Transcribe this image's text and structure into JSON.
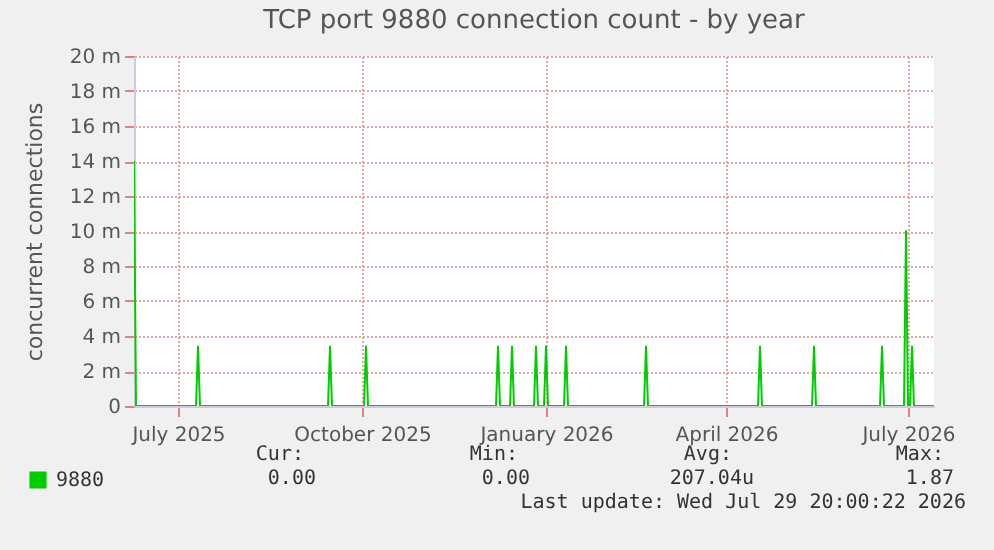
{
  "chart_data": {
    "type": "line",
    "title": "TCP port 9880 connection count - by year",
    "ylabel": "concurrent connections",
    "x": [
      "2025-06-24",
      "2025-06-25",
      "2025-07-25",
      "2025-07-26",
      "2025-07-27",
      "2025-09-29",
      "2025-09-30",
      "2025-10-01",
      "2025-10-17",
      "2025-10-18",
      "2025-10-19",
      "2025-12-22",
      "2025-12-23",
      "2025-12-24",
      "2025-12-29",
      "2025-12-30",
      "2025-12-31",
      "2026-01-10",
      "2026-01-11",
      "2026-01-12",
      "2026-01-15",
      "2026-01-16",
      "2026-01-17",
      "2026-01-25",
      "2026-01-26",
      "2026-01-27",
      "2026-03-06",
      "2026-03-07",
      "2026-03-08",
      "2026-05-02",
      "2026-05-03",
      "2026-05-04",
      "2026-05-29",
      "2026-05-30",
      "2026-05-31",
      "2026-07-02",
      "2026-07-03",
      "2026-07-04",
      "2026-07-14",
      "2026-07-15",
      "2026-07-16",
      "2026-07-17",
      "2026-07-18",
      "2026-07-19",
      "2026-07-29"
    ],
    "series": [
      {
        "name": "9880",
        "color": "#00cc00",
        "values": [
          14,
          0,
          0,
          3.4,
          0,
          0,
          3.4,
          0,
          0,
          3.4,
          0,
          0,
          3.4,
          0,
          0,
          3.4,
          0,
          0,
          3.4,
          0,
          0,
          3.4,
          0,
          0,
          3.4,
          0,
          0,
          3.4,
          0,
          0,
          3.4,
          0,
          0,
          3.4,
          0,
          0,
          3.4,
          0,
          0,
          10,
          0,
          0,
          3.4,
          0,
          0
        ]
      }
    ],
    "xlim": [
      "2025-06-24",
      "2026-07-29"
    ],
    "xticks": [
      {
        "value": "2025-07-16",
        "label": "July 2025"
      },
      {
        "value": "2025-10-16",
        "label": "October 2025"
      },
      {
        "value": "2026-01-16",
        "label": "January 2026"
      },
      {
        "value": "2026-04-16",
        "label": "April 2026"
      },
      {
        "value": "2026-07-16",
        "label": "July 2026"
      }
    ],
    "ylim": [
      0,
      20
    ],
    "yticks": [
      0,
      {
        "value": 2,
        "label": "2 m"
      },
      {
        "value": 4,
        "label": "4 m"
      },
      {
        "value": 6,
        "label": "6 m"
      },
      {
        "value": 8,
        "label": "8 m"
      },
      {
        "value": 10,
        "label": "10 m"
      },
      {
        "value": 12,
        "label": "12 m"
      },
      {
        "value": 14,
        "label": "14 m"
      },
      {
        "value": 16,
        "label": "16 m"
      },
      {
        "value": 18,
        "label": "18 m"
      },
      {
        "value": 20,
        "label": "20 m"
      }
    ],
    "grid": true,
    "legend": "bottom left",
    "marker": "none",
    "line_style": "solid",
    "annotations": [
      "Cur:",
      "Min:",
      "Avg:",
      "Max:",
      "0.00",
      "0.00",
      "207.04u",
      "1.87",
      "Last update: Wed Jul 29 20:00:22 2026"
    ]
  }
}
